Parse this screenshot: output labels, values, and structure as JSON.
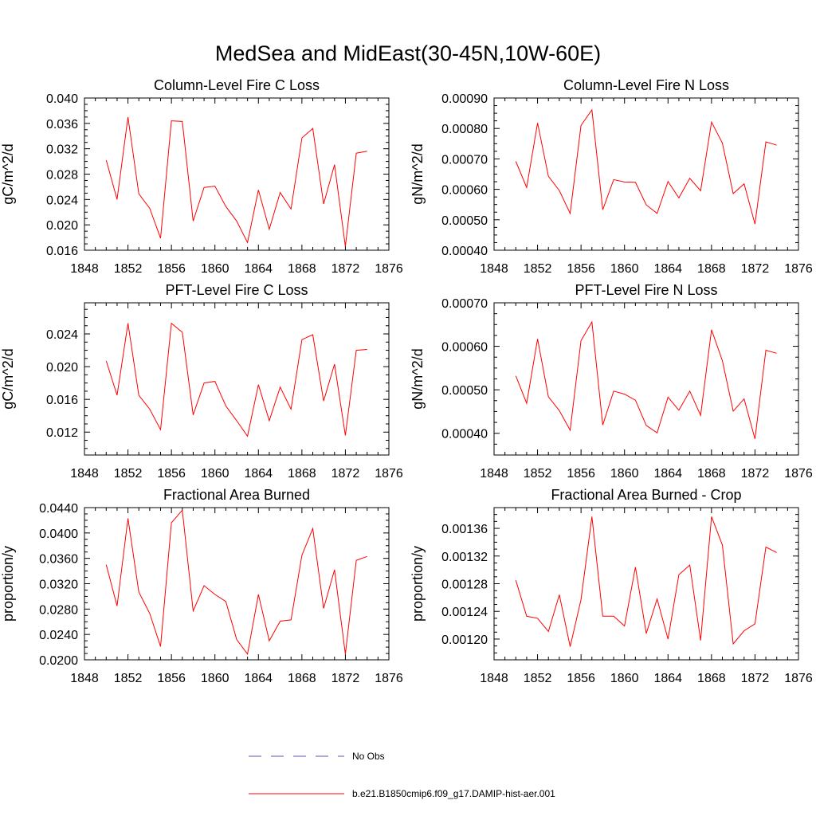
{
  "figure_title": "MedSea and MidEast(30-45N,10W-60E)",
  "colors": {
    "model": "#ff0000",
    "obs": "#5a5aa8",
    "axes": "#000000"
  },
  "legend": {
    "obs_label": "No Obs",
    "model_label": "b.e21.B1850cmip6.f09_g17.DAMIP-hist-aer.001"
  },
  "chart_data": [
    {
      "type": "line",
      "title": "Column-Level Fire C Loss",
      "ylabel": "gC/m^2/d",
      "xlim": [
        1848,
        1876
      ],
      "ylim": [
        0.016,
        0.04
      ],
      "x_ticks": [
        "1848",
        "1852",
        "1856",
        "1860",
        "1864",
        "1868",
        "1872",
        "1876"
      ],
      "y_tick_values": [
        0.016,
        0.02,
        0.024,
        0.028,
        0.032,
        0.036,
        0.04
      ],
      "y_tick_labels": [
        "0.016",
        "0.020",
        "0.024",
        "0.028",
        "0.032",
        "0.036",
        "0.040"
      ],
      "x": [
        1850,
        1851,
        1852,
        1853,
        1854,
        1855,
        1856,
        1857,
        1858,
        1859,
        1860,
        1861,
        1862,
        1863,
        1864,
        1865,
        1866,
        1867,
        1868,
        1869,
        1870,
        1871,
        1872,
        1873,
        1874
      ],
      "series": [
        {
          "name": "b.e21.B1850cmip6.f09_g17.DAMIP-hist-aer.001",
          "values": [
            0.0302,
            0.024,
            0.037,
            0.0249,
            0.0226,
            0.0179,
            0.0364,
            0.0363,
            0.0206,
            0.0259,
            0.0261,
            0.0229,
            0.0206,
            0.0172,
            0.0255,
            0.0193,
            0.0251,
            0.0225,
            0.0337,
            0.0352,
            0.0233,
            0.0295,
            0.0166,
            0.0313,
            0.0316
          ]
        }
      ]
    },
    {
      "type": "line",
      "title": "Column-Level Fire N Loss",
      "ylabel": "gN/m^2/d",
      "xlim": [
        1848,
        1876
      ],
      "ylim": [
        0.0004,
        0.0009
      ],
      "x_ticks": [
        "1848",
        "1852",
        "1856",
        "1860",
        "1864",
        "1868",
        "1872",
        "1876"
      ],
      "y_tick_values": [
        0.0004,
        0.0005,
        0.0006,
        0.0007,
        0.0008,
        0.0009
      ],
      "y_tick_labels": [
        "0.00040",
        "0.00050",
        "0.00060",
        "0.00070",
        "0.00080",
        "0.00090"
      ],
      "x": [
        1850,
        1851,
        1852,
        1853,
        1854,
        1855,
        1856,
        1857,
        1858,
        1859,
        1860,
        1861,
        1862,
        1863,
        1864,
        1865,
        1866,
        1867,
        1868,
        1869,
        1870,
        1871,
        1872,
        1873,
        1874
      ],
      "series": [
        {
          "name": "b.e21.B1850cmip6.f09_g17.DAMIP-hist-aer.001",
          "values": [
            0.000692,
            0.000606,
            0.000818,
            0.000643,
            0.000596,
            0.000521,
            0.00081,
            0.000861,
            0.000533,
            0.000632,
            0.000624,
            0.000623,
            0.000549,
            0.000521,
            0.000626,
            0.000572,
            0.000636,
            0.000595,
            0.000821,
            0.000752,
            0.000586,
            0.000618,
            0.000486,
            0.000756,
            0.000745
          ]
        }
      ]
    },
    {
      "type": "line",
      "title": "PFT-Level Fire C Loss",
      "ylabel": "gC/m^2/d",
      "xlim": [
        1848,
        1876
      ],
      "ylim": [
        0.0092,
        0.0278
      ],
      "x_ticks": [
        "1848",
        "1852",
        "1856",
        "1860",
        "1864",
        "1868",
        "1872",
        "1876"
      ],
      "y_tick_values": [
        0.012,
        0.016,
        0.02,
        0.024
      ],
      "y_tick_labels": [
        "0.012",
        "0.016",
        "0.020",
        "0.024"
      ],
      "x": [
        1850,
        1851,
        1852,
        1853,
        1854,
        1855,
        1856,
        1857,
        1858,
        1859,
        1860,
        1861,
        1862,
        1863,
        1864,
        1865,
        1866,
        1867,
        1868,
        1869,
        1870,
        1871,
        1872,
        1873,
        1874
      ],
      "series": [
        {
          "name": "b.e21.B1850cmip6.f09_g17.DAMIP-hist-aer.001",
          "values": [
            0.0207,
            0.0165,
            0.0253,
            0.0165,
            0.0148,
            0.0123,
            0.0253,
            0.0242,
            0.0141,
            0.018,
            0.0182,
            0.0152,
            0.0134,
            0.0115,
            0.0178,
            0.0134,
            0.0175,
            0.0148,
            0.0233,
            0.0239,
            0.0158,
            0.0203,
            0.0116,
            0.022,
            0.0221
          ]
        }
      ]
    },
    {
      "type": "line",
      "title": "PFT-Level Fire N Loss",
      "ylabel": "gN/m^2/d",
      "xlim": [
        1848,
        1876
      ],
      "ylim": [
        0.00035,
        0.0007
      ],
      "x_ticks": [
        "1848",
        "1852",
        "1856",
        "1860",
        "1864",
        "1868",
        "1872",
        "1876"
      ],
      "y_tick_values": [
        0.0004,
        0.0005,
        0.0006,
        0.0007
      ],
      "y_tick_labels": [
        "0.00040",
        "0.00050",
        "0.00060",
        "0.00070"
      ],
      "x": [
        1850,
        1851,
        1852,
        1853,
        1854,
        1855,
        1856,
        1857,
        1858,
        1859,
        1860,
        1861,
        1862,
        1863,
        1864,
        1865,
        1866,
        1867,
        1868,
        1869,
        1870,
        1871,
        1872,
        1873,
        1874
      ],
      "series": [
        {
          "name": "b.e21.B1850cmip6.f09_g17.DAMIP-hist-aer.001",
          "values": [
            0.000532,
            0.000469,
            0.000617,
            0.000484,
            0.000452,
            0.000407,
            0.000613,
            0.000656,
            0.000419,
            0.000497,
            0.00049,
            0.000476,
            0.000418,
            0.000401,
            0.000483,
            0.000453,
            0.000497,
            0.000441,
            0.000638,
            0.000567,
            0.000451,
            0.000479,
            0.000387,
            0.000591,
            0.000584
          ]
        }
      ]
    },
    {
      "type": "line",
      "title": "Fractional Area Burned",
      "ylabel": "proportion/y",
      "xlim": [
        1848,
        1876
      ],
      "ylim": [
        0.02,
        0.044
      ],
      "x_ticks": [
        "1848",
        "1852",
        "1856",
        "1860",
        "1864",
        "1868",
        "1872",
        "1876"
      ],
      "y_tick_values": [
        0.02,
        0.024,
        0.028,
        0.032,
        0.036,
        0.04,
        0.044
      ],
      "y_tick_labels": [
        "0.0200",
        "0.0240",
        "0.0280",
        "0.0320",
        "0.0360",
        "0.0400",
        "0.0440"
      ],
      "x": [
        1850,
        1851,
        1852,
        1853,
        1854,
        1855,
        1856,
        1857,
        1858,
        1859,
        1860,
        1861,
        1862,
        1863,
        1864,
        1865,
        1866,
        1867,
        1868,
        1869,
        1870,
        1871,
        1872,
        1873,
        1874
      ],
      "series": [
        {
          "name": "b.e21.B1850cmip6.f09_g17.DAMIP-hist-aer.001",
          "values": [
            0.035,
            0.0285,
            0.0423,
            0.0307,
            0.0273,
            0.0221,
            0.0416,
            0.0436,
            0.0277,
            0.0317,
            0.0303,
            0.0292,
            0.0232,
            0.0209,
            0.0303,
            0.023,
            0.0261,
            0.0263,
            0.0365,
            0.0407,
            0.0281,
            0.0342,
            0.0209,
            0.0357,
            0.0363
          ]
        }
      ]
    },
    {
      "type": "line",
      "title": "Fractional Area Burned - Crop",
      "ylabel": "proportion/y",
      "xlim": [
        1848,
        1876
      ],
      "ylim": [
        0.00117,
        0.00139
      ],
      "x_ticks": [
        "1848",
        "1852",
        "1856",
        "1860",
        "1864",
        "1868",
        "1872",
        "1876"
      ],
      "y_tick_values": [
        0.0012,
        0.00124,
        0.00128,
        0.00132,
        0.00136
      ],
      "y_tick_labels": [
        "0.00120",
        "0.00124",
        "0.00128",
        "0.00132",
        "0.00136"
      ],
      "x": [
        1850,
        1851,
        1852,
        1853,
        1854,
        1855,
        1856,
        1857,
        1858,
        1859,
        1860,
        1861,
        1862,
        1863,
        1864,
        1865,
        1866,
        1867,
        1868,
        1869,
        1870,
        1871,
        1872,
        1873,
        1874
      ],
      "series": [
        {
          "name": "b.e21.B1850cmip6.f09_g17.DAMIP-hist-aer.001",
          "values": [
            0.001285,
            0.001233,
            0.00123,
            0.001211,
            0.001264,
            0.001189,
            0.001257,
            0.001377,
            0.001233,
            0.001233,
            0.001219,
            0.001304,
            0.001208,
            0.001258,
            0.0012,
            0.001293,
            0.001307,
            0.001198,
            0.001377,
            0.001336,
            0.001193,
            0.001212,
            0.001222,
            0.001333,
            0.001325
          ]
        }
      ]
    }
  ]
}
